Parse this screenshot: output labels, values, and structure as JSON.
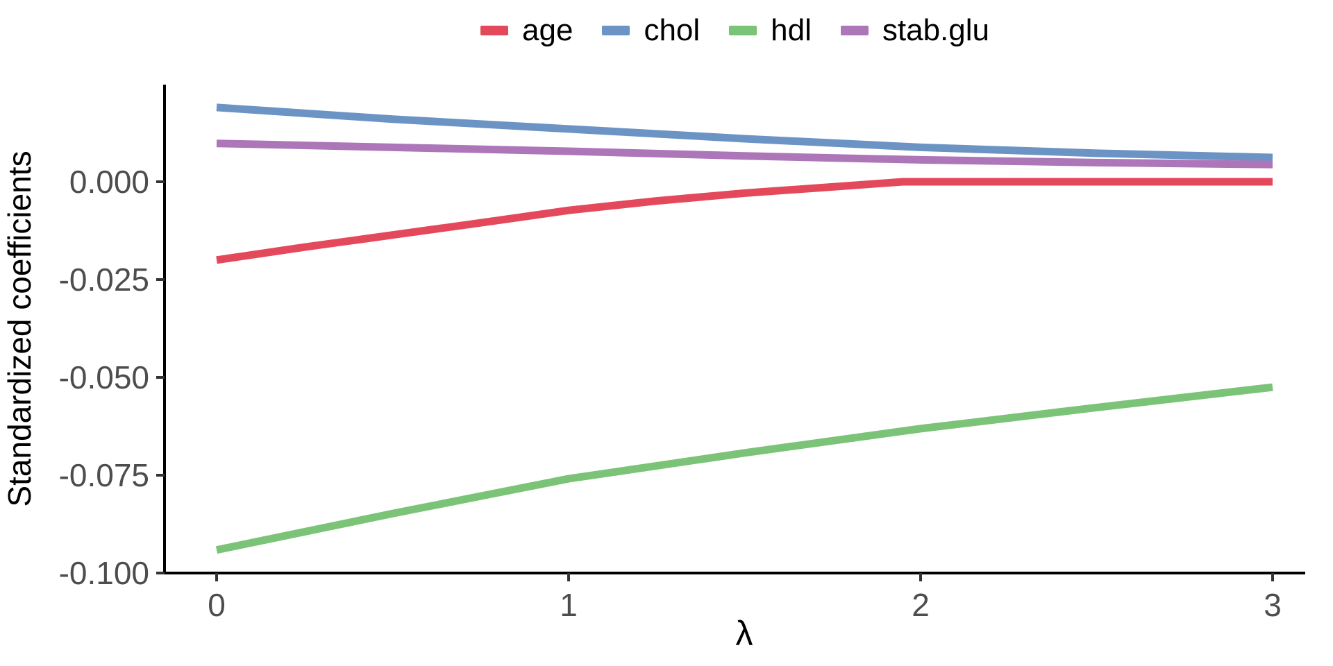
{
  "chart_data": {
    "type": "line",
    "title": "",
    "xlabel": "λ",
    "ylabel": "Standardized coefficients",
    "x_ticks": [
      0,
      1,
      2,
      3
    ],
    "x_tick_labels": [
      "0",
      "1",
      "2",
      "3"
    ],
    "y_ticks": [
      0.0,
      -0.025,
      -0.05,
      -0.075,
      -0.1
    ],
    "y_tick_labels": [
      "0.000",
      "-0.025",
      "-0.050",
      "-0.075",
      "-0.100"
    ],
    "xlim": [
      0,
      3
    ],
    "ylim": [
      -0.1,
      0.025
    ],
    "grid": false,
    "legend_position": "top",
    "series": [
      {
        "name": "age",
        "color": "#E4495B",
        "x": [
          0,
          0.25,
          0.5,
          0.75,
          1,
          1.25,
          1.5,
          1.75,
          1.95,
          2.2,
          2.6,
          3
        ],
        "y": [
          -0.02,
          -0.0167,
          -0.0136,
          -0.0105,
          -0.0073,
          -0.0049,
          -0.0029,
          -0.0013,
          0.0,
          0.0,
          0.0,
          0.0
        ]
      },
      {
        "name": "chol",
        "color": "#6B93C4",
        "x": [
          0,
          0.5,
          1,
          1.5,
          2,
          2.5,
          3
        ],
        "y": [
          0.019,
          0.016,
          0.0135,
          0.011,
          0.0088,
          0.0073,
          0.0062
        ]
      },
      {
        "name": "hdl",
        "color": "#7BC376",
        "x": [
          0,
          0.5,
          1,
          1.5,
          2,
          2.5,
          3
        ],
        "y": [
          -0.0941,
          -0.0848,
          -0.0759,
          -0.0693,
          -0.0631,
          -0.0577,
          -0.0525
        ]
      },
      {
        "name": "stab.glu",
        "color": "#AC76B9",
        "x": [
          0,
          0.5,
          1,
          1.5,
          2,
          2.5,
          3
        ],
        "y": [
          0.0098,
          0.0088,
          0.0078,
          0.0066,
          0.0056,
          0.0049,
          0.0044
        ]
      }
    ],
    "style": {
      "axis_line_color": "#000000",
      "tick_color": "#333333",
      "tick_label_color": "#4D4D4D",
      "line_width": 11
    }
  }
}
